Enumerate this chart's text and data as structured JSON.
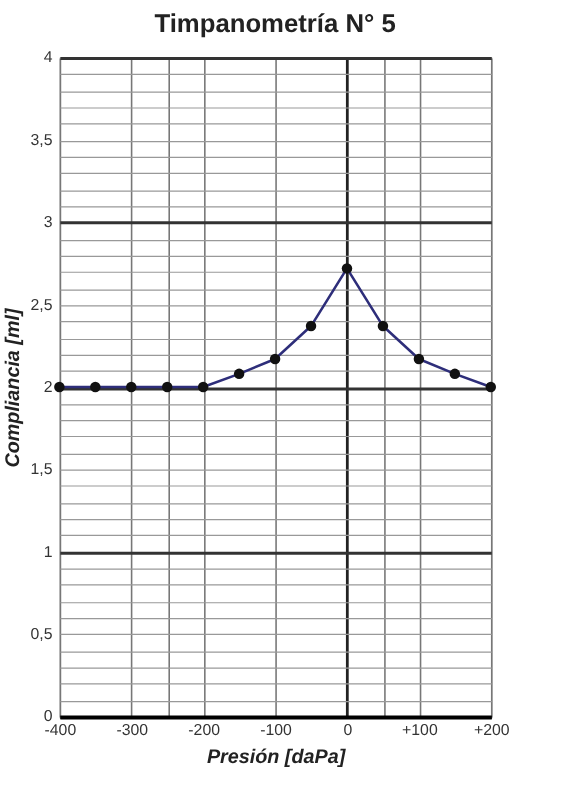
{
  "chart_data": {
    "type": "line",
    "title": "Timpanometría N° 5",
    "xlabel": "Presión [daPa]",
    "ylabel": "Compliancia [ml]",
    "x": [
      -400,
      -350,
      -300,
      -250,
      -200,
      -150,
      -100,
      -50,
      0,
      50,
      100,
      150,
      200
    ],
    "series": [
      {
        "color": "#2e2e7a",
        "values": [
          2,
          2,
          2,
          2,
          2,
          2.08,
          2.17,
          2.37,
          2.72,
          2.37,
          2.17,
          2.08,
          2
        ]
      }
    ],
    "xlim": [
      -400,
      200
    ],
    "xticks": [
      -400,
      -300,
      {
        "value": -250,
        "label": null
      },
      -200,
      -100,
      0,
      {
        "value": 50,
        "label": null
      },
      {
        "value": 100,
        "label": "+100"
      },
      {
        "value": 200,
        "label": "+200"
      }
    ],
    "ylim": [
      0,
      4
    ],
    "yticks": [
      0,
      {
        "value": 0.1,
        "label": null
      },
      {
        "value": 0.2,
        "label": null
      },
      {
        "value": 0.3,
        "label": null
      },
      {
        "value": 0.4,
        "label": null
      },
      {
        "value": 0.5,
        "label": "0,5"
      },
      {
        "value": 0.6,
        "label": null
      },
      {
        "value": 0.7,
        "label": null
      },
      {
        "value": 0.8,
        "label": null
      },
      {
        "value": 0.9,
        "label": null
      },
      1,
      {
        "value": 1.1,
        "label": null
      },
      {
        "value": 1.2,
        "label": null
      },
      {
        "value": 1.3,
        "label": null
      },
      {
        "value": 1.4,
        "label": null
      },
      {
        "value": 1.5,
        "label": "1,5"
      },
      {
        "value": 1.6,
        "label": null
      },
      {
        "value": 1.7,
        "label": null
      },
      {
        "value": 1.8,
        "label": null
      },
      {
        "value": 1.9,
        "label": null
      },
      2,
      {
        "value": 2.1,
        "label": null
      },
      {
        "value": 2.2,
        "label": null
      },
      {
        "value": 2.3,
        "label": null
      },
      {
        "value": 2.4,
        "label": null
      },
      {
        "value": 2.5,
        "label": "2,5"
      },
      {
        "value": 2.6,
        "label": null
      },
      {
        "value": 2.7,
        "label": null
      },
      {
        "value": 2.8,
        "label": null
      },
      {
        "value": 2.9,
        "label": null
      },
      3,
      {
        "value": 3.1,
        "label": null
      },
      {
        "value": 3.2,
        "label": null
      },
      {
        "value": 3.3,
        "label": null
      },
      {
        "value": 3.4,
        "label": null
      },
      {
        "value": 3.5,
        "label": "3,5"
      },
      {
        "value": 3.6,
        "label": null
      },
      {
        "value": 3.7,
        "label": null
      },
      {
        "value": 3.8,
        "label": null
      },
      {
        "value": 3.9,
        "label": null
      },
      4
    ],
    "grid": true,
    "marker": "circle",
    "line_style": "solid"
  }
}
